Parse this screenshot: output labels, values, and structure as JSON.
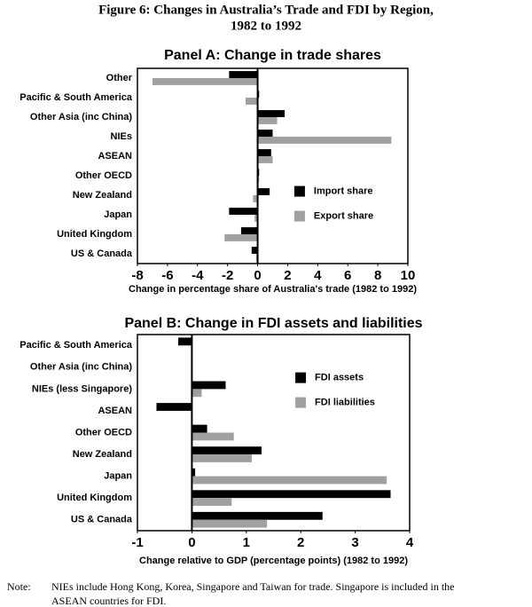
{
  "figure": {
    "title": [
      "Figure 6: Changes in Australia’s Trade and FDI by Region,",
      "1982 to 1992"
    ]
  },
  "chart_data": [
    {
      "type": "bar",
      "orientation": "horizontal",
      "title": "Panel A: Change in trade shares",
      "x_label": "Change in percentage share of Australia's trade (1982 to 1992)",
      "categories": [
        "Other",
        "Pacific & South America",
        "Other Asia (inc China)",
        "NIEs",
        "ASEAN",
        "Other OECD",
        "New Zealand",
        "Japan",
        "United Kingdom",
        "US & Canada"
      ],
      "series": [
        {
          "name": "Import share",
          "color": "#000000",
          "values": [
            -1.9,
            0.1,
            1.8,
            1.0,
            0.9,
            0.1,
            0.8,
            -1.9,
            -1.1,
            -0.4
          ]
        },
        {
          "name": "Export share",
          "color": "#a0a0a0",
          "values": [
            -7.0,
            -0.8,
            1.3,
            8.9,
            1.0,
            0.1,
            -0.3,
            -0.2,
            -2.2,
            -0.1
          ]
        }
      ],
      "xlim": [
        -8,
        10
      ],
      "xticks": [
        -8,
        -6,
        -4,
        -2,
        0,
        2,
        4,
        6,
        8,
        10
      ],
      "grid": false,
      "legend": "center right"
    },
    {
      "type": "bar",
      "orientation": "horizontal",
      "title": "Panel B: Change in FDI assets and liabilities",
      "x_label": "Change relative to GDP (percentage points) (1982 to 1992)",
      "categories": [
        "Pacific & South America",
        "Other Asia (inc China)",
        "NIEs (less Singapore)",
        "ASEAN",
        "Other OECD",
        "New Zealand",
        "Japan",
        "United Kingdom",
        "US & Canada"
      ],
      "series": [
        {
          "name": "FDI assets",
          "color": "#000000",
          "values": [
            -0.25,
            0,
            0.62,
            -0.65,
            0.28,
            1.28,
            0.06,
            3.65,
            2.4
          ]
        },
        {
          "name": "FDI liabilities",
          "color": "#a0a0a0",
          "values": [
            0,
            0,
            0.18,
            0,
            0.77,
            1.1,
            3.58,
            0.73,
            1.38
          ]
        }
      ],
      "xlim": [
        -1,
        4
      ],
      "xticks": [
        -1,
        0,
        1,
        2,
        3,
        4
      ],
      "grid": false,
      "legend": "upper right"
    }
  ],
  "note": {
    "label": "Note:",
    "lines": [
      "NIEs include Hong Kong, Korea, Singapore and Taiwan for trade. Singapore is included in the",
      "ASEAN countries for FDI."
    ]
  }
}
